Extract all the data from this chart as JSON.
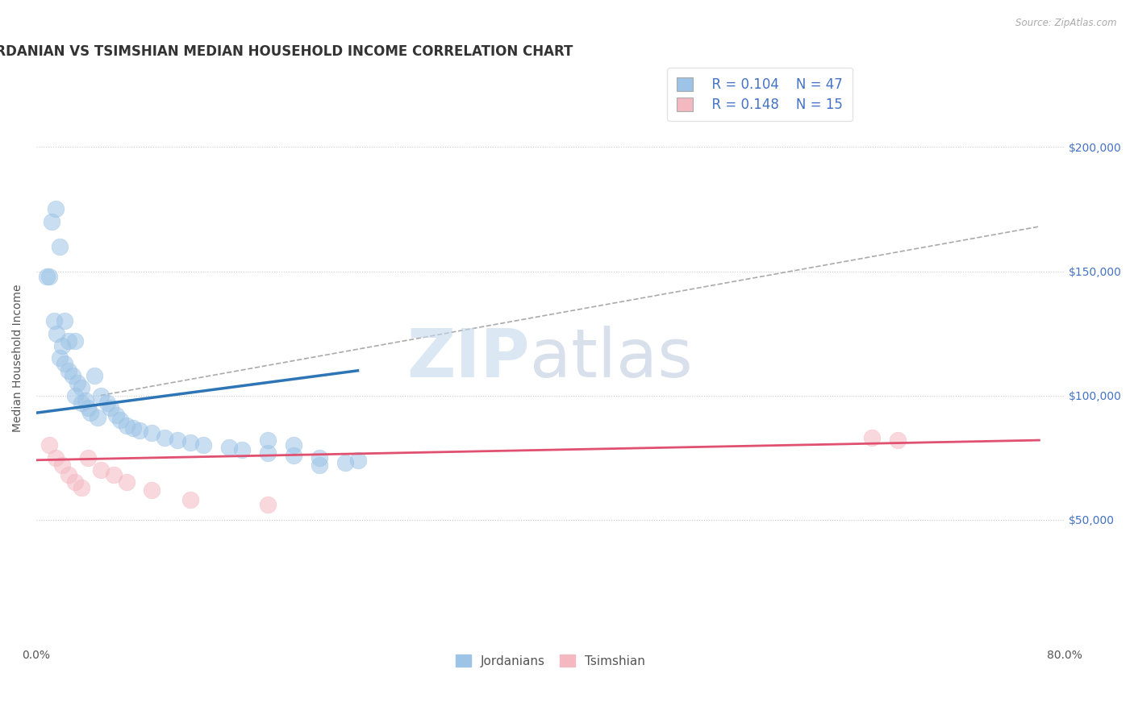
{
  "title": "JORDANIAN VS TSIMSHIAN MEDIAN HOUSEHOLD INCOME CORRELATION CHART",
  "source": "Source: ZipAtlas.com",
  "ylabel": "Median Household Income",
  "xlim": [
    0.0,
    0.8
  ],
  "ylim": [
    0,
    230000
  ],
  "xtick_positions": [
    0.0,
    0.2,
    0.4,
    0.6,
    0.8
  ],
  "xtick_labels": [
    "0.0%",
    "",
    "",
    "",
    "80.0%"
  ],
  "yticks_right": [
    50000,
    100000,
    150000,
    200000
  ],
  "ytick_labels_right": [
    "$50,000",
    "$100,000",
    "$150,000",
    "$200,000"
  ],
  "blue_x": [
    0.012,
    0.018,
    0.008,
    0.015,
    0.022,
    0.025,
    0.01,
    0.014,
    0.016,
    0.02,
    0.018,
    0.022,
    0.03,
    0.025,
    0.028,
    0.032,
    0.035,
    0.03,
    0.038,
    0.04,
    0.035,
    0.042,
    0.045,
    0.048,
    0.05,
    0.055,
    0.058,
    0.062,
    0.065,
    0.07,
    0.075,
    0.08,
    0.09,
    0.1,
    0.11,
    0.12,
    0.13,
    0.15,
    0.16,
    0.18,
    0.2,
    0.22,
    0.25,
    0.18,
    0.2,
    0.24,
    0.22
  ],
  "blue_y": [
    170000,
    160000,
    148000,
    175000,
    130000,
    122000,
    148000,
    130000,
    125000,
    120000,
    115000,
    113000,
    122000,
    110000,
    108000,
    105000,
    103000,
    100000,
    98000,
    95000,
    97000,
    93000,
    108000,
    91000,
    100000,
    97000,
    95000,
    92000,
    90000,
    88000,
    87000,
    86000,
    85000,
    83000,
    82000,
    81000,
    80000,
    79000,
    78000,
    77000,
    76000,
    75000,
    74000,
    82000,
    80000,
    73000,
    72000
  ],
  "pink_x": [
    0.01,
    0.015,
    0.02,
    0.025,
    0.03,
    0.035,
    0.04,
    0.05,
    0.06,
    0.07,
    0.09,
    0.12,
    0.18,
    0.65,
    0.67
  ],
  "pink_y": [
    80000,
    75000,
    72000,
    68000,
    65000,
    63000,
    75000,
    70000,
    68000,
    65000,
    62000,
    58000,
    56000,
    83000,
    82000
  ],
  "blue_line_x": [
    0.0,
    0.25
  ],
  "blue_line_y": [
    93000,
    110000
  ],
  "pink_line_x": [
    0.0,
    0.78
  ],
  "pink_line_y": [
    74000,
    82000
  ],
  "gray_dash_line_x": [
    0.05,
    0.78
  ],
  "gray_dash_line_y": [
    100000,
    168000
  ],
  "blue_color": "#9DC3E6",
  "blue_edge_color": "#9DC3E6",
  "blue_line_color": "#2E75B6",
  "pink_color": "#F4B8C1",
  "pink_edge_color": "#F4B8C1",
  "pink_line_color": "#E05070",
  "gray_dash_color": "#AAAAAA",
  "legend_blue_r": "R = 0.104",
  "legend_blue_n": "N = 47",
  "legend_pink_r": "R = 0.148",
  "legend_pink_n": "N = 15",
  "legend_text_color": "#4472C4",
  "watermark_zip": "ZIP",
  "watermark_atlas": "atlas",
  "background_color": "#FFFFFF",
  "grid_color": "#CCCCCC",
  "tick_color": "#4472C4",
  "title_fontsize": 12,
  "axis_label_fontsize": 10,
  "tick_fontsize": 10,
  "legend_fontsize": 12,
  "scatter_size": 220,
  "scatter_alpha": 0.55
}
